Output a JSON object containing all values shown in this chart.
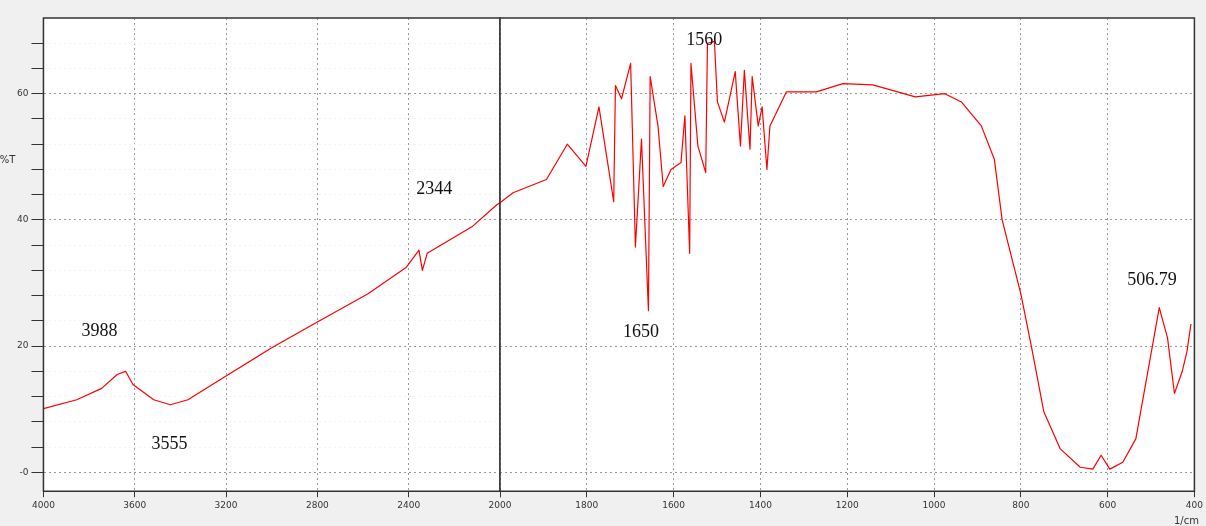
{
  "chart_data": [
    {
      "type": "line",
      "ylabel": "%T",
      "xlim": [
        4000,
        2000
      ],
      "xticks": [
        4000,
        3600,
        3200,
        2800,
        2400,
        {
          "value": 2000,
          "label": null
        }
      ],
      "ylim": [
        -3,
        72
      ],
      "yticks": [
        {
          "value": 0,
          "label": "-0"
        },
        {
          "value": 4,
          "label": null
        },
        {
          "value": 8,
          "label": null
        },
        {
          "value": 12,
          "label": null
        },
        {
          "value": 16,
          "label": null
        },
        20,
        {
          "value": 24,
          "label": null
        },
        {
          "value": 28,
          "label": null
        },
        {
          "value": 32,
          "label": null
        },
        {
          "value": 36,
          "label": null
        },
        40,
        {
          "value": 44,
          "label": null
        },
        {
          "value": 48,
          "label": null
        },
        {
          "value": 52,
          "label": null
        },
        {
          "value": 56,
          "label": null
        },
        60,
        {
          "value": 64,
          "label": null
        },
        {
          "value": 68,
          "label": null
        }
      ],
      "grid": true,
      "marker": "none",
      "line_style": "solid",
      "annotations": [
        "3988",
        "3555",
        "2344"
      ],
      "series": [
        {
          "color": "#ff0000",
          "x": [
            4000,
            3854,
            3745,
            3677,
            3640,
            3608,
            3517,
            3444,
            3367,
            3216,
            3002,
            2806,
            2578,
            2410,
            2355,
            2340,
            2319,
            2123,
            2014,
            2000
          ],
          "values": [
            10.1,
            11.5,
            13.3,
            15.5,
            16,
            13.9,
            11.5,
            10.7,
            11.5,
            14.9,
            19.7,
            23.7,
            28.3,
            32.5,
            35.2,
            32,
            34.7,
            38.9,
            42.4,
            42.7
          ]
        }
      ]
    },
    {
      "type": "line",
      "xlabel": "1/cm",
      "tick_labels": "x",
      "xlim": [
        2000,
        400
      ],
      "xticks": [
        2000,
        1800,
        1600,
        1400,
        1200,
        1000,
        800,
        600,
        400
      ],
      "ylim": [
        -3,
        72
      ],
      "yticks": [
        {
          "value": 0,
          "label": null
        },
        {
          "value": 20,
          "label": null
        },
        {
          "value": 40,
          "label": null
        },
        {
          "value": 60,
          "label": null
        }
      ],
      "grid": true,
      "marker": "none",
      "line_style": "solid",
      "annotations": [
        "1560",
        "1650",
        "506.79"
      ],
      "series": [
        {
          "color": "#ff0000",
          "x": [
            2000,
            1970,
            1893,
            1845,
            1802,
            1772,
            1738,
            1734,
            1720,
            1699,
            1688,
            1674,
            1658,
            1654,
            1636,
            1624,
            1606,
            1583,
            1574,
            1563,
            1560,
            1544,
            1526,
            1522,
            1506,
            1499,
            1483,
            1458,
            1446,
            1437,
            1424,
            1419,
            1405,
            1396,
            1385,
            1378,
            1340,
            1271,
            1210,
            1141,
            1043,
            975,
            937,
            891,
            861,
            843,
            800,
            775,
            747,
            709,
            663,
            634,
            615,
            595,
            565,
            535,
            503,
            481,
            462,
            446,
            428,
            417,
            408
          ],
          "values": [
            42.7,
            44.3,
            46.4,
            52,
            48.5,
            57.9,
            42.9,
            61.3,
            59.2,
            64.8,
            35.7,
            52.8,
            25.6,
            62.7,
            54.9,
            45.3,
            48,
            49.1,
            56.5,
            34.7,
            64.8,
            51.7,
            47.5,
            68,
            68.3,
            58.7,
            55.5,
            63.5,
            51.7,
            63.7,
            51.2,
            62.7,
            54.9,
            57.9,
            48,
            54.9,
            60.3,
            60.3,
            61.6,
            61.4,
            59.5,
            60,
            58.7,
            54.9,
            49.6,
            40,
            28.3,
            19.7,
            9.6,
            3.7,
            0.8,
            0.5,
            2.7,
            0.5,
            1.6,
            5.3,
            17.6,
            26.1,
            21.3,
            12.5,
            16,
            19.2,
            23.5
          ]
        }
      ]
    }
  ]
}
